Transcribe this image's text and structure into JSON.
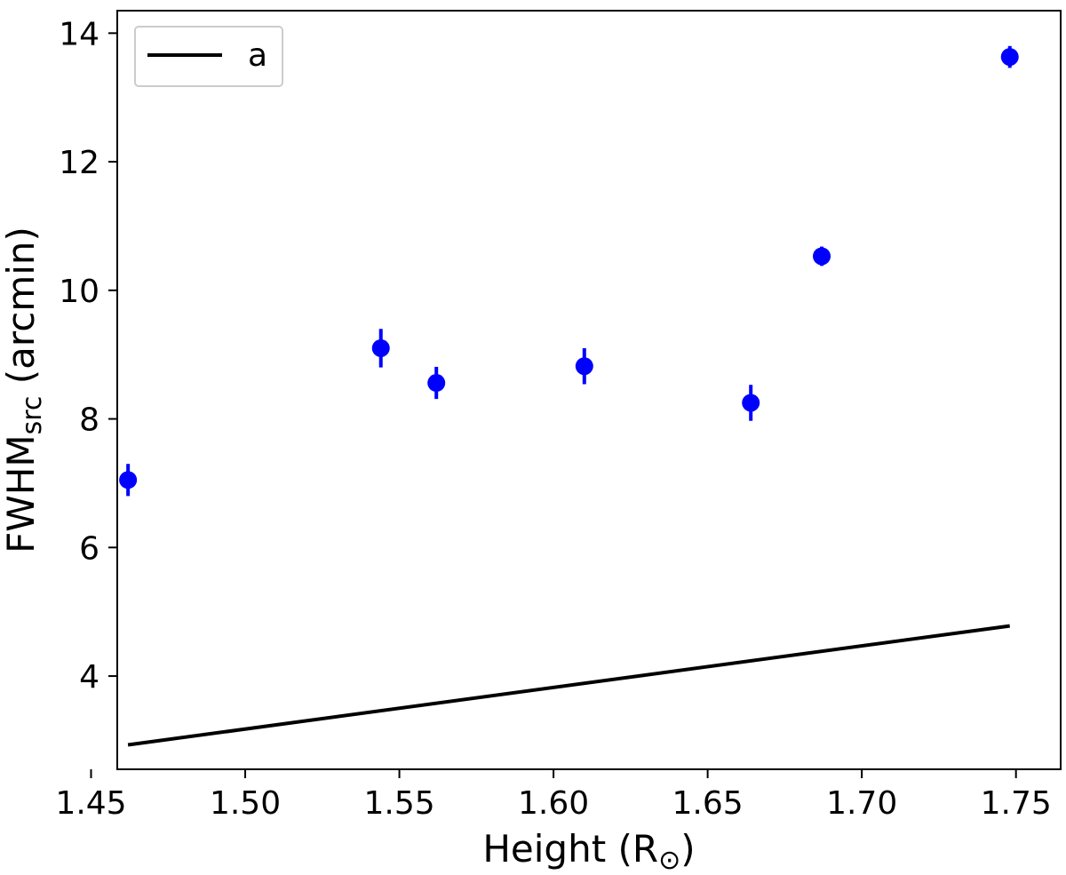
{
  "chart_data": {
    "type": "scatter",
    "title": "",
    "xlabel_main": "Height (R",
    "xlabel_sub": "⊙",
    "xlabel_end": ")",
    "ylabel_main": "FWHM",
    "ylabel_sub": "src",
    "ylabel_end": " (arcmin)",
    "xlim": [
      1.4585,
      1.7645
    ],
    "ylim": [
      2.55,
      14.35
    ],
    "xticks": [
      1.45,
      1.5,
      1.55,
      1.6,
      1.65,
      1.7,
      1.75
    ],
    "xtick_labels": [
      "1.45",
      "1.50",
      "1.55",
      "1.60",
      "1.65",
      "1.70",
      "1.75"
    ],
    "yticks": [
      4,
      6,
      8,
      10,
      12,
      14
    ],
    "ytick_labels": [
      "4",
      "6",
      "8",
      "10",
      "12",
      "14"
    ],
    "grid": false,
    "legend_position": "top-left",
    "points": {
      "color": "#0000ff",
      "x": [
        1.462,
        1.544,
        1.562,
        1.61,
        1.664,
        1.687,
        1.748
      ],
      "y": [
        7.05,
        9.1,
        8.56,
        8.82,
        8.25,
        10.53,
        13.63
      ],
      "yerr": [
        0.25,
        0.3,
        0.25,
        0.28,
        0.28,
        0.15,
        0.17
      ]
    },
    "line": {
      "name": "a",
      "color": "#000000",
      "x": [
        1.462,
        1.748
      ],
      "y": [
        2.93,
        4.78
      ]
    }
  }
}
